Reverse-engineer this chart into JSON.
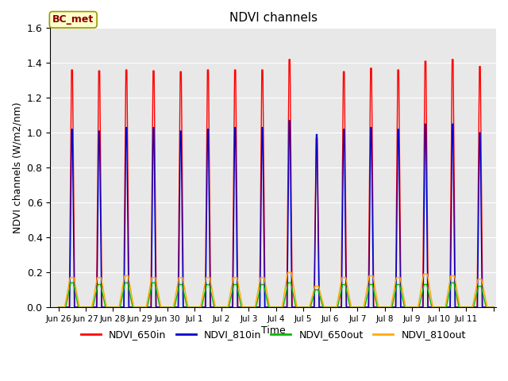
{
  "title": "NDVI channels",
  "xlabel": "Time",
  "ylabel": "NDVI channels (W/m2/nm)",
  "ylim": [
    0,
    1.6
  ],
  "yticks": [
    0.0,
    0.2,
    0.4,
    0.6,
    0.8,
    1.0,
    1.2,
    1.4,
    1.6
  ],
  "bg_color": "#e8e8e8",
  "annotation_text": "BC_met",
  "annotation_bg": "#ffffcc",
  "annotation_border": "#999900",
  "colors": {
    "NDVI_650in": "#ff0000",
    "NDVI_810in": "#0000cc",
    "NDVI_650out": "#00bb00",
    "NDVI_810out": "#ffaa00"
  },
  "num_cycles": 16,
  "peak_650in": [
    1.36,
    1.355,
    1.36,
    1.355,
    1.35,
    1.36,
    1.36,
    1.36,
    1.42,
    0.97,
    1.35,
    1.37,
    1.36,
    1.41,
    1.42,
    1.38
  ],
  "peak_810in": [
    1.02,
    1.01,
    1.03,
    1.03,
    1.01,
    1.02,
    1.03,
    1.03,
    1.07,
    0.99,
    1.02,
    1.03,
    1.02,
    1.05,
    1.05,
    1.0
  ],
  "peak_650out": [
    0.14,
    0.13,
    0.14,
    0.14,
    0.13,
    0.13,
    0.13,
    0.13,
    0.14,
    0.1,
    0.13,
    0.13,
    0.13,
    0.13,
    0.14,
    0.12
  ],
  "peak_810out": [
    0.17,
    0.17,
    0.18,
    0.17,
    0.17,
    0.17,
    0.17,
    0.17,
    0.2,
    0.12,
    0.17,
    0.18,
    0.17,
    0.19,
    0.18,
    0.16
  ],
  "x_tick_labels": [
    "Jun 26",
    "Jun 27",
    "Jun 28",
    "Jun 29",
    "Jun 30",
    "Jul 1",
    "Jul 2",
    "Jul 3",
    "Jul 4",
    "Jul 5",
    "Jul 6",
    "Jul 7",
    "Jul 8",
    "Jul 9",
    "Jul 10",
    "Jul 11",
    ""
  ],
  "legend_labels": [
    "NDVI_650in",
    "NDVI_810in",
    "NDVI_650out",
    "NDVI_810out"
  ],
  "legend_colors": [
    "#ff0000",
    "#0000cc",
    "#00bb00",
    "#ffaa00"
  ],
  "linewidth_in": 1.0,
  "linewidth_out": 1.0
}
